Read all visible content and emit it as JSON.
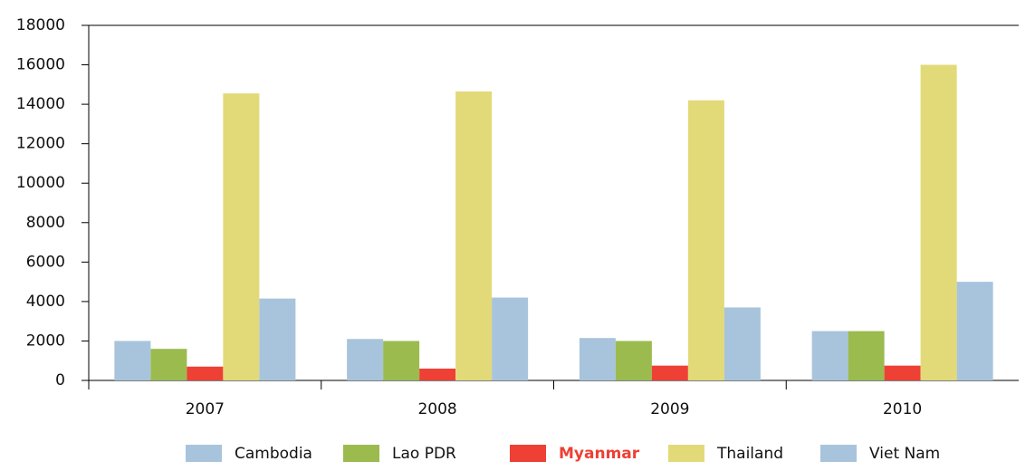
{
  "chart_data": {
    "type": "bar",
    "categories": [
      "2007",
      "2008",
      "2009",
      "2010"
    ],
    "series": [
      {
        "name": "Cambodia",
        "color": "#a8c4dc",
        "values": [
          2000,
          2100,
          2150,
          2500
        ]
      },
      {
        "name": "Lao PDR",
        "color": "#9bbb4f",
        "values": [
          1600,
          2000,
          2000,
          2500
        ]
      },
      {
        "name": "Myanmar",
        "color": "#ee4035",
        "values": [
          700,
          600,
          750,
          750
        ],
        "highlight": true
      },
      {
        "name": "Thailand",
        "color": "#e2da78",
        "values": [
          14550,
          14650,
          14200,
          16000
        ]
      },
      {
        "name": "Viet Nam",
        "color": "#a8c4dc",
        "values": [
          4150,
          4200,
          3700,
          5000
        ]
      }
    ],
    "ylim": [
      0,
      18000
    ],
    "yticks": [
      0,
      2000,
      4000,
      6000,
      8000,
      10000,
      12000,
      14000,
      16000,
      18000
    ],
    "legend": "bottom"
  }
}
